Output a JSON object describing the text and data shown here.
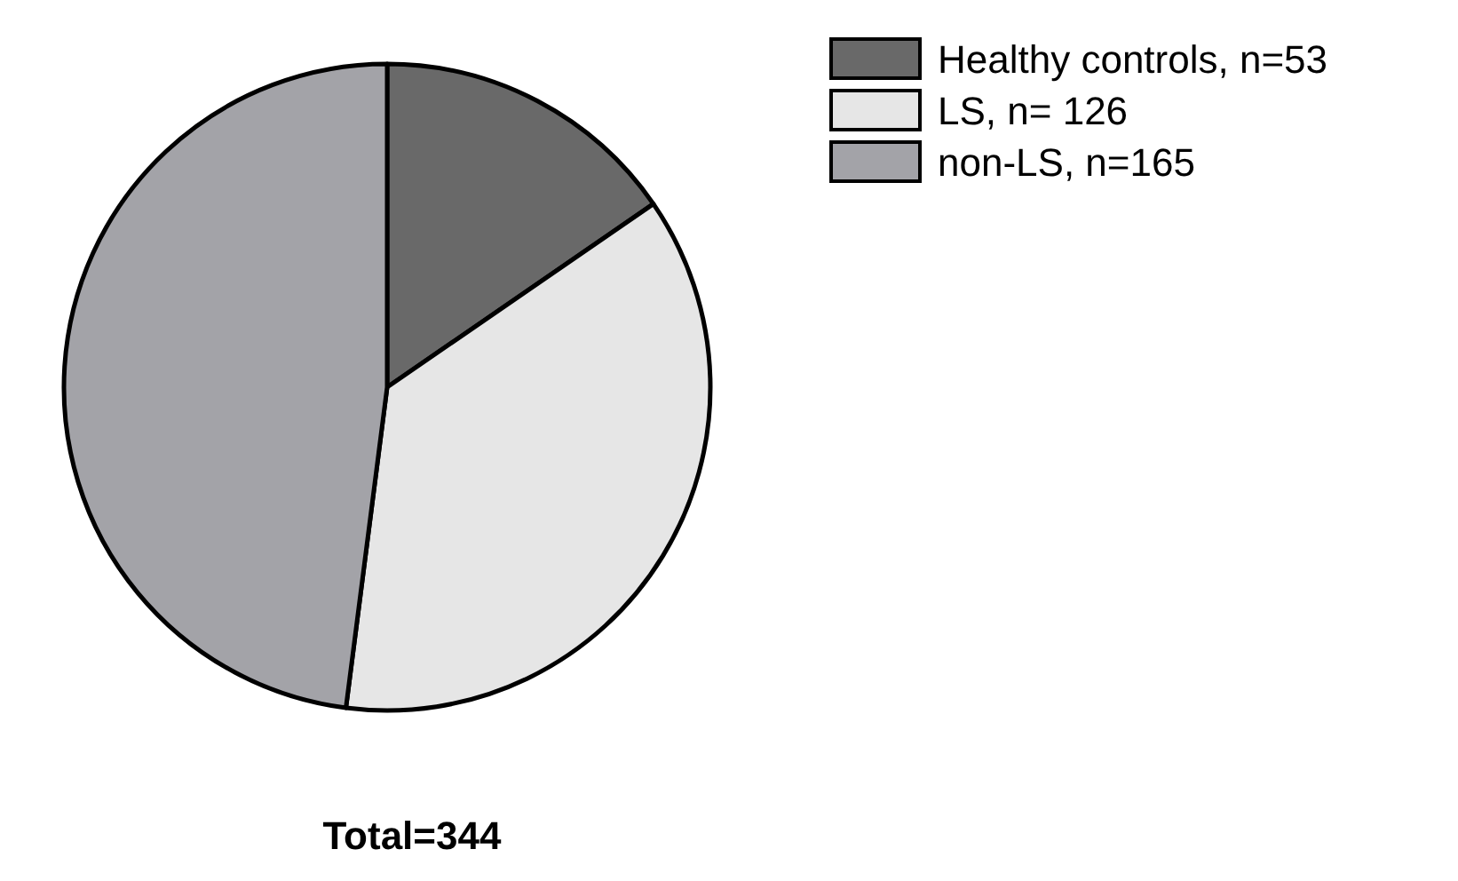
{
  "chart_data": {
    "type": "pie",
    "categories": [
      "Healthy controls, n=53",
      "LS, n= 126",
      "non-LS, n=165"
    ],
    "values": [
      53,
      126,
      165
    ],
    "colors": [
      "#696969",
      "#e6e6e6",
      "#a3a3a8"
    ],
    "legend": "top right",
    "annotations": [
      "Total=344"
    ]
  }
}
